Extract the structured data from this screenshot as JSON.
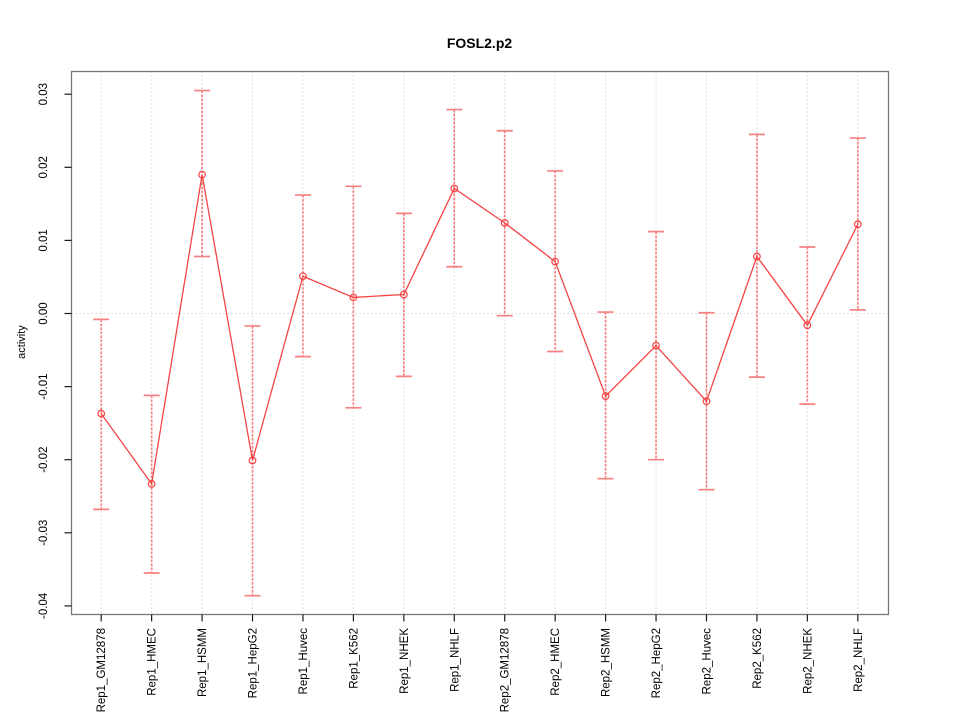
{
  "chart_data": {
    "type": "line",
    "title": "FOSL2.p2",
    "xlabel": "",
    "ylabel": "activity",
    "categories": [
      "Rep1_GM12878",
      "Rep1_HMEC",
      "Rep1_HSMM",
      "Rep1_HepG2",
      "Rep1_Huvec",
      "Rep1_K562",
      "Rep1_NHEK",
      "Rep1_NHLF",
      "Rep2_GM12878",
      "Rep2_HMEC",
      "Rep2_HSMM",
      "Rep2_HepG2",
      "Rep2_Huvec",
      "Rep2_K562",
      "Rep2_NHEK",
      "Rep2_NHLF"
    ],
    "series": [
      {
        "name": "activity",
        "marker": "open-circle",
        "values": [
          -0.0137,
          -0.0233,
          0.019,
          -0.0201,
          0.0051,
          0.0022,
          0.0026,
          0.0171,
          0.0124,
          0.0071,
          -0.0113,
          -0.0044,
          -0.012,
          0.0078,
          -0.0016,
          0.0122
        ],
        "ci_high": [
          -0.0008,
          -0.0112,
          0.0305,
          -0.0017,
          0.0162,
          0.0174,
          0.0137,
          0.0279,
          0.025,
          0.0195,
          0.0002,
          0.0112,
          0.0001,
          0.0245,
          0.0091,
          0.024
        ],
        "ci_low": [
          -0.0268,
          -0.0355,
          0.0078,
          -0.0386,
          -0.0059,
          -0.0129,
          -0.0086,
          0.0064,
          -0.0003,
          -0.0052,
          -0.0226,
          -0.02,
          -0.0241,
          -0.0087,
          -0.0124,
          0.0005
        ]
      }
    ],
    "yticks": [
      {
        "value": 0.03,
        "label": "0.03"
      },
      {
        "value": 0.02,
        "label": "0.02"
      },
      {
        "value": 0.01,
        "label": "0.01"
      },
      {
        "value": 0.0,
        "label": "0.00"
      },
      {
        "value": -0.01,
        "label": "-0.01"
      },
      {
        "value": -0.02,
        "label": "-0.02"
      },
      {
        "value": -0.03,
        "label": "-0.03"
      },
      {
        "value": -0.04,
        "label": "-0.04"
      }
    ],
    "ylim": [
      -0.0425,
      0.0332
    ],
    "grid": "vertical dotted line at every category; dotted horizontal reference line at y=0",
    "legend_position": "none",
    "x_label_rotation_deg": -90,
    "colors": {
      "line": "#f54444",
      "marker_stroke": "#f54444",
      "error_bar": "#f78080",
      "grid": "#d8d8d8",
      "zero_line": "#d8d8d8",
      "box": "#787878",
      "tick": "#1a1a1a",
      "text": "#000000",
      "background": "#ffffff"
    }
  }
}
